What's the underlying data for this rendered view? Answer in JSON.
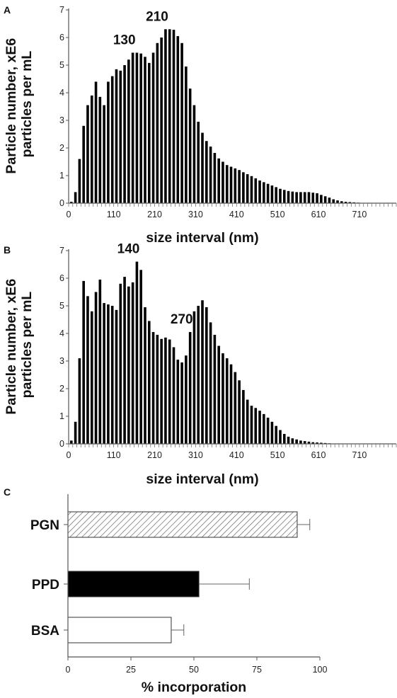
{
  "chart_data": [
    {
      "type": "bar",
      "panel": "A",
      "ylabel": "Particle number, xE6 particles per mL",
      "xlabel": "size interval (nm)",
      "ylim": [
        0,
        7
      ],
      "yticks": [
        "0",
        "1",
        "2",
        "3",
        "4",
        "5",
        "6",
        "7"
      ],
      "xticks": [
        "0",
        "110",
        "210",
        "310",
        "410",
        "510",
        "610",
        "710"
      ],
      "bin_width": 10,
      "bin_count": 80,
      "annotations": [
        {
          "text": "130",
          "x": 130
        },
        {
          "text": "210",
          "x": 210
        }
      ],
      "values": [
        0.05,
        0.4,
        1.6,
        2.8,
        3.55,
        3.9,
        4.4,
        3.85,
        3.55,
        4.4,
        4.6,
        4.85,
        4.8,
        5.0,
        5.2,
        5.45,
        5.45,
        5.42,
        5.3,
        5.08,
        5.45,
        5.8,
        6.0,
        6.3,
        6.3,
        6.28,
        6.05,
        5.8,
        4.95,
        4.15,
        3.55,
        2.95,
        2.55,
        2.25,
        2.05,
        1.82,
        1.62,
        1.5,
        1.38,
        1.32,
        1.26,
        1.2,
        1.12,
        1.05,
        0.98,
        0.9,
        0.82,
        0.76,
        0.7,
        0.64,
        0.58,
        0.52,
        0.48,
        0.44,
        0.42,
        0.4,
        0.4,
        0.4,
        0.4,
        0.38,
        0.36,
        0.3,
        0.25,
        0.2,
        0.14,
        0.1,
        0.07,
        0.05,
        0.04,
        0.03,
        0.02,
        0.01,
        0,
        0,
        0,
        0,
        0,
        0,
        0,
        0
      ]
    },
    {
      "type": "bar",
      "panel": "B",
      "ylabel": "Particle number, xE6 particles per mL",
      "xlabel": "size interval (nm)",
      "ylim": [
        0,
        7
      ],
      "yticks": [
        "0",
        "1",
        "2",
        "3",
        "4",
        "5",
        "6",
        "7"
      ],
      "xticks": [
        "0",
        "110",
        "210",
        "310",
        "410",
        "510",
        "610",
        "710"
      ],
      "bin_width": 10,
      "bin_count": 80,
      "annotations": [
        {
          "text": "140",
          "x": 140
        },
        {
          "text": "270",
          "x": 270
        }
      ],
      "values": [
        0.12,
        0.8,
        3.1,
        5.9,
        5.35,
        4.8,
        5.5,
        5.95,
        5.1,
        5.05,
        5.0,
        4.85,
        5.8,
        6.05,
        5.7,
        5.85,
        6.6,
        6.3,
        4.95,
        4.45,
        4.05,
        3.95,
        3.8,
        3.85,
        3.78,
        3.5,
        3.05,
        2.95,
        3.2,
        4.05,
        4.8,
        5.0,
        5.2,
        4.95,
        4.4,
        3.95,
        3.55,
        3.28,
        3.1,
        2.88,
        2.6,
        2.3,
        1.95,
        1.6,
        1.38,
        1.3,
        1.2,
        1.08,
        0.95,
        0.8,
        0.65,
        0.5,
        0.36,
        0.26,
        0.2,
        0.16,
        0.12,
        0.1,
        0.08,
        0.06,
        0.05,
        0.04,
        0.03,
        0.02,
        0.01,
        0.01,
        0.01,
        0.01,
        0,
        0,
        0,
        0,
        0,
        0,
        0,
        0,
        0,
        0,
        0,
        0
      ]
    },
    {
      "type": "bar",
      "orientation": "horizontal",
      "panel": "C",
      "xlabel": "% incorporation",
      "xlim": [
        0,
        100
      ],
      "xticks": [
        "0",
        "25",
        "50",
        "75",
        "100"
      ],
      "categories": [
        "PGN",
        "PPD",
        "BSA"
      ],
      "values": [
        91,
        52,
        41
      ],
      "errors": [
        5,
        20,
        5
      ],
      "fills": [
        "hatched",
        "black",
        "white"
      ]
    }
  ]
}
